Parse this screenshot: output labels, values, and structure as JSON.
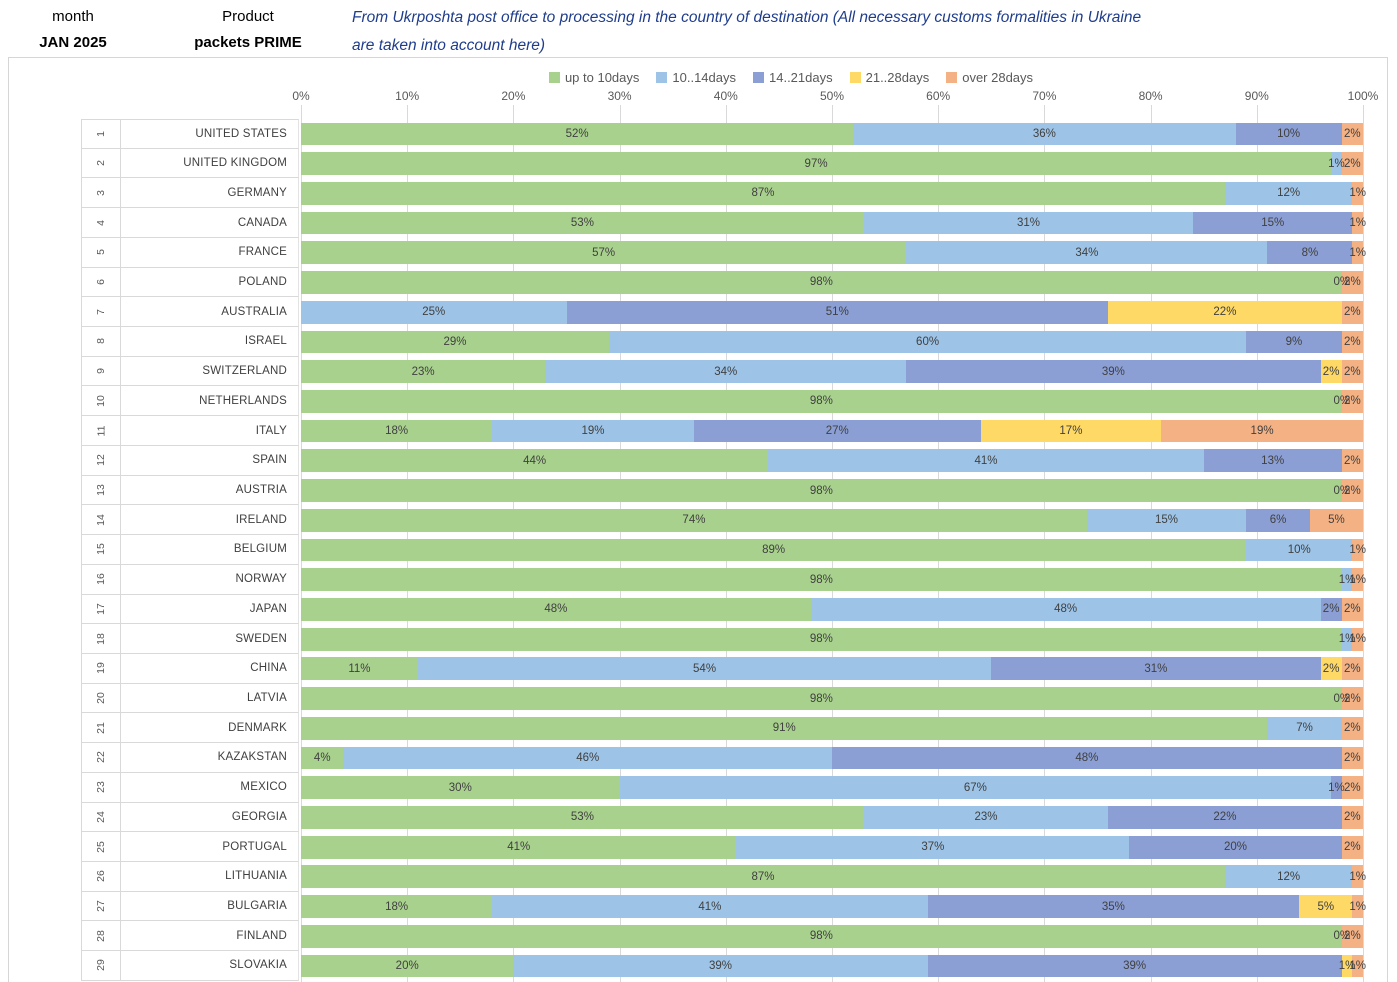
{
  "header": {
    "month_label": "month",
    "month_value": "JAN 2025",
    "product_label": "Product",
    "product_value": "packets PRIME",
    "title_line1": "From Ukrposhta post office to processing in the country of destination (All necessary customs formalities in Ukraine",
    "title_line2": "are taken into account here)"
  },
  "colors": {
    "title_text": "#1f3d8c",
    "gridline": "#d9d9d9",
    "axis_text": "#595959",
    "bar_label_text": "#404040",
    "frame_border": "#d6d6d6"
  },
  "chart_data": {
    "type": "bar",
    "orientation": "horizontal-stacked",
    "unit": "percent",
    "xlim": [
      0,
      100
    ],
    "x_ticks": [
      "0%",
      "10%",
      "20%",
      "30%",
      "40%",
      "50%",
      "60%",
      "70%",
      "80%",
      "90%",
      "100%"
    ],
    "grid": true,
    "legend_position": "top",
    "series": [
      {
        "name": "up to 10days",
        "color": "#a9d18e"
      },
      {
        "name": "10..14days",
        "color": "#9dc3e6"
      },
      {
        "name": "14..21days",
        "color": "#8b9fd4"
      },
      {
        "name": "21..28days",
        "color": "#ffd966"
      },
      {
        "name": "over 28days",
        "color": "#f4b183"
      }
    ],
    "rows": [
      {
        "rank": "1",
        "country": "UNITED STATES",
        "values": [
          52,
          36,
          10,
          0,
          2
        ],
        "labels": [
          "52%",
          "36%",
          "10%",
          "",
          "2%"
        ]
      },
      {
        "rank": "2",
        "country": "UNITED KINGDOM",
        "values": [
          97,
          1,
          0,
          0,
          2
        ],
        "labels": [
          "97%",
          "1%",
          "",
          "",
          "2%"
        ]
      },
      {
        "rank": "3",
        "country": "GERMANY",
        "values": [
          87,
          12,
          0,
          0,
          1
        ],
        "labels": [
          "87%",
          "12%",
          "",
          "",
          "1%"
        ]
      },
      {
        "rank": "4",
        "country": "CANADA",
        "values": [
          53,
          31,
          15,
          0,
          1
        ],
        "labels": [
          "53%",
          "31%",
          "15%",
          "",
          "1%"
        ]
      },
      {
        "rank": "5",
        "country": "FRANCE",
        "values": [
          57,
          34,
          8,
          0,
          1
        ],
        "labels": [
          "57%",
          "34%",
          "8%",
          "",
          "1%"
        ]
      },
      {
        "rank": "6",
        "country": "POLAND",
        "values": [
          98,
          0,
          0,
          0,
          2
        ],
        "labels": [
          "98%",
          "0%",
          "",
          "",
          "2%"
        ]
      },
      {
        "rank": "7",
        "country": "AUSTRALIA",
        "values": [
          0,
          25,
          51,
          22,
          2
        ],
        "labels": [
          "",
          "25%",
          "51%",
          "22%",
          "2%"
        ]
      },
      {
        "rank": "8",
        "country": "ISRAEL",
        "values": [
          29,
          60,
          9,
          0,
          2
        ],
        "labels": [
          "29%",
          "60%",
          "9%",
          "",
          "2%"
        ]
      },
      {
        "rank": "9",
        "country": "SWITZERLAND",
        "values": [
          23,
          34,
          39,
          2,
          2
        ],
        "labels": [
          "23%",
          "34%",
          "39%",
          "2%",
          "2%"
        ]
      },
      {
        "rank": "10",
        "country": "NETHERLANDS",
        "values": [
          98,
          0,
          0,
          0,
          2
        ],
        "labels": [
          "98%",
          "0%",
          "",
          "",
          "2%"
        ]
      },
      {
        "rank": "11",
        "country": "ITALY",
        "values": [
          18,
          19,
          27,
          17,
          19
        ],
        "labels": [
          "18%",
          "19%",
          "27%",
          "17%",
          "19%"
        ]
      },
      {
        "rank": "12",
        "country": "SPAIN",
        "values": [
          44,
          41,
          13,
          0,
          2
        ],
        "labels": [
          "44%",
          "41%",
          "13%",
          "",
          "2%"
        ]
      },
      {
        "rank": "13",
        "country": "AUSTRIA",
        "values": [
          98,
          0,
          0,
          0,
          2
        ],
        "labels": [
          "98%",
          "0%",
          "",
          "",
          "2%"
        ]
      },
      {
        "rank": "14",
        "country": "IRELAND",
        "values": [
          74,
          15,
          6,
          0,
          5
        ],
        "labels": [
          "74%",
          "15%",
          "6%",
          "",
          "5%"
        ]
      },
      {
        "rank": "15",
        "country": "BELGIUM",
        "values": [
          89,
          10,
          0,
          0,
          1
        ],
        "labels": [
          "89%",
          "10%",
          "",
          "",
          "1%"
        ]
      },
      {
        "rank": "16",
        "country": "NORWAY",
        "values": [
          98,
          1,
          0,
          0,
          1
        ],
        "labels": [
          "98%",
          "1%",
          "",
          "",
          "1%"
        ]
      },
      {
        "rank": "17",
        "country": "JAPAN",
        "values": [
          48,
          48,
          2,
          0,
          2
        ],
        "labels": [
          "48%",
          "48%",
          "2%",
          "",
          "2%"
        ]
      },
      {
        "rank": "18",
        "country": "SWEDEN",
        "values": [
          98,
          1,
          0,
          0,
          1
        ],
        "labels": [
          "98%",
          "1%",
          "",
          "",
          "1%"
        ]
      },
      {
        "rank": "19",
        "country": "CHINA",
        "values": [
          11,
          54,
          31,
          2,
          2
        ],
        "labels": [
          "11%",
          "54%",
          "31%",
          "2%",
          "2%"
        ]
      },
      {
        "rank": "20",
        "country": "LATVIA",
        "values": [
          98,
          0,
          0,
          0,
          2
        ],
        "labels": [
          "98%",
          "0%",
          "",
          "",
          "2%"
        ]
      },
      {
        "rank": "21",
        "country": "DENMARK",
        "values": [
          91,
          7,
          0,
          0,
          2
        ],
        "labels": [
          "91%",
          "7%",
          "",
          "",
          "2%"
        ]
      },
      {
        "rank": "22",
        "country": "KAZAKSTAN",
        "values": [
          4,
          46,
          48,
          0,
          2
        ],
        "labels": [
          "4%",
          "46%",
          "48%",
          "",
          "2%"
        ]
      },
      {
        "rank": "23",
        "country": "MEXICO",
        "values": [
          30,
          67,
          1,
          0,
          2
        ],
        "labels": [
          "30%",
          "67%",
          "1%",
          "",
          "2%"
        ]
      },
      {
        "rank": "24",
        "country": "GEORGIA",
        "values": [
          53,
          23,
          22,
          0,
          2
        ],
        "labels": [
          "53%",
          "23%",
          "22%",
          "",
          "2%"
        ]
      },
      {
        "rank": "25",
        "country": "PORTUGAL",
        "values": [
          41,
          37,
          20,
          0,
          2
        ],
        "labels": [
          "41%",
          "37%",
          "20%",
          "",
          "2%"
        ]
      },
      {
        "rank": "26",
        "country": "LITHUANIA",
        "values": [
          87,
          12,
          0,
          0,
          1
        ],
        "labels": [
          "87%",
          "12%",
          "",
          "",
          "1%"
        ]
      },
      {
        "rank": "27",
        "country": "BULGARIA",
        "values": [
          18,
          41,
          35,
          5,
          1
        ],
        "labels": [
          "18%",
          "41%",
          "35%",
          "5%",
          "1%"
        ]
      },
      {
        "rank": "28",
        "country": "FINLAND",
        "values": [
          98,
          0,
          0,
          0,
          2
        ],
        "labels": [
          "98%",
          "0%",
          "",
          "",
          "2%"
        ]
      },
      {
        "rank": "29",
        "country": "SLOVAKIA",
        "values": [
          20,
          39,
          39,
          1,
          1
        ],
        "labels": [
          "20%",
          "39%",
          "39%",
          "1%",
          "1%"
        ]
      }
    ]
  }
}
